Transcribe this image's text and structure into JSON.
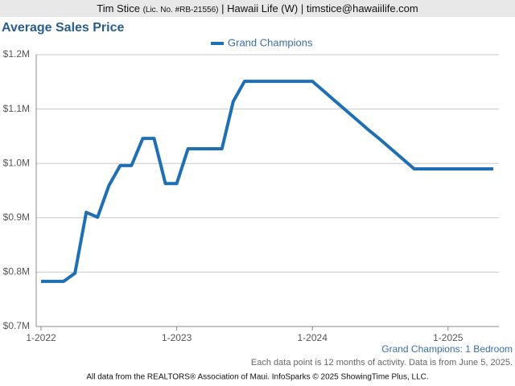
{
  "header": {
    "name": "Tim Stice",
    "license": "(Lic. No. #RB-21556)",
    "rest": "| Hawaii Life (W) | timstice@hawaiilife.com"
  },
  "chart_data": {
    "type": "line",
    "title": "Average Sales Price",
    "categories": [
      "1-2022",
      null,
      null,
      null,
      null,
      null,
      null,
      null,
      null,
      null,
      null,
      null,
      "1-2023",
      null,
      null,
      null,
      null,
      null,
      null,
      null,
      null,
      null,
      null,
      null,
      "1-2024",
      null,
      null,
      null,
      null,
      null,
      null,
      null,
      null,
      null,
      null,
      null,
      "1-2025",
      null,
      null,
      null,
      null
    ],
    "series": [
      {
        "name": "Grand Champions",
        "color": "#1f6fb4",
        "values": [
          783000,
          783000,
          783000,
          798000,
          910000,
          901000,
          959000,
          996000,
          996000,
          1046000,
          1046000,
          963000,
          963000,
          1027000,
          1027000,
          1027000,
          1027000,
          1114000,
          1151000,
          1151000,
          1151000,
          1151000,
          1151000,
          1151000,
          1151000,
          1133000,
          1115000,
          1097000,
          1079000,
          1061000,
          1044000,
          1026000,
          1008000,
          990000,
          990000,
          990000,
          990000,
          990000,
          990000,
          990000,
          990000
        ]
      }
    ],
    "ylim": [
      700000,
      1200000
    ],
    "yticks": [
      {
        "value": 700000,
        "label": "$0.7M"
      },
      {
        "value": 800000,
        "label": "$0.8M"
      },
      {
        "value": 900000,
        "label": "$0.9M"
      },
      {
        "value": 1000000,
        "label": "$1.0M"
      },
      {
        "value": 1100000,
        "label": "$1.1M"
      },
      {
        "value": 1200000,
        "label": "$1.2M"
      }
    ],
    "grid": true,
    "legend": "top",
    "subtitle": "Grand Champions: 1 Bedroom",
    "note": "Each data point is 12 months of activity. Data is from June 5, 2025.",
    "footer": "All data from the REALTORS® Association of Maui. InfoSparks © 2025 ShowingTime Plus, LLC."
  }
}
